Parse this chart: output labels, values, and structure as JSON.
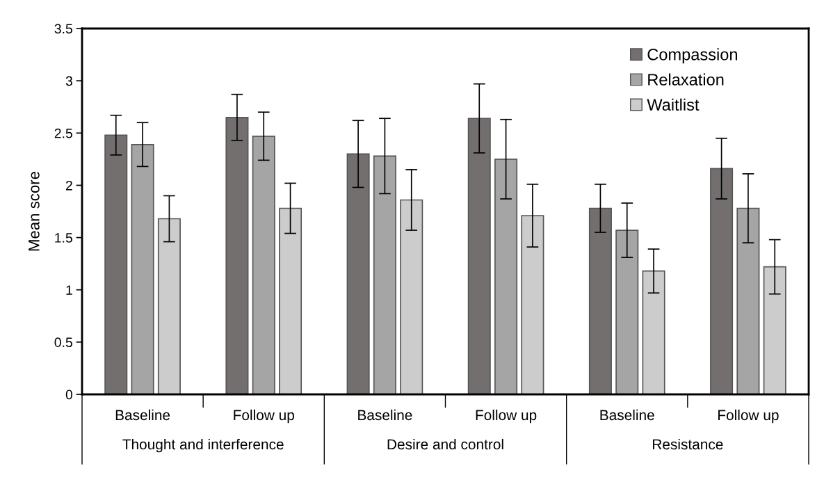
{
  "chart_data": {
    "type": "bar",
    "ylabel": "Mean score",
    "categories": [
      "Baseline",
      "Follow up",
      "Baseline",
      "Follow up",
      "Baseline",
      "Follow up"
    ],
    "annotations": [
      "Thought and interference",
      "Desire and control",
      "Resistance"
    ],
    "series": [
      {
        "name": "Compassion",
        "color": "#736f6f",
        "values": [
          2.48,
          2.65,
          2.3,
          2.64,
          1.78,
          2.16
        ],
        "errors": [
          0.19,
          0.22,
          0.32,
          0.33,
          0.23,
          0.29
        ]
      },
      {
        "name": "Relaxation",
        "color": "#a5a5a5",
        "values": [
          2.39,
          2.47,
          2.28,
          2.25,
          1.57,
          1.78
        ],
        "errors": [
          0.21,
          0.23,
          0.36,
          0.38,
          0.26,
          0.33
        ]
      },
      {
        "name": "Waitlist",
        "color": "#cccccc",
        "values": [
          1.68,
          1.78,
          1.86,
          1.71,
          1.18,
          1.22
        ],
        "errors": [
          0.22,
          0.24,
          0.29,
          0.3,
          0.21,
          0.26
        ]
      }
    ],
    "ylim": [
      0,
      3.5
    ],
    "yticks": [
      0,
      0.5,
      1,
      1.5,
      2,
      2.5,
      3,
      3.5
    ],
    "grid": false,
    "legend": "top right"
  }
}
